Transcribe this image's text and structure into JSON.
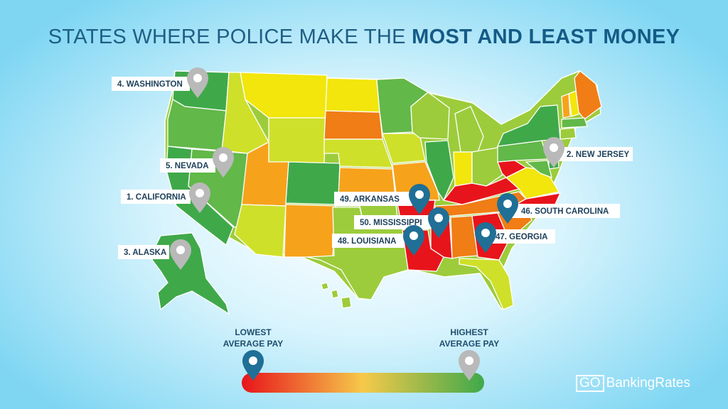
{
  "title": {
    "prefix": "STATES WHERE POLICE MAKE THE ",
    "emphasis": "MOST AND LEAST MONEY"
  },
  "markers": [
    {
      "label": "4. WASHINGTON",
      "kind": "high"
    },
    {
      "label": "5. NEVADA",
      "kind": "high"
    },
    {
      "label": "1. CALIFORNIA",
      "kind": "high"
    },
    {
      "label": "3. ALASKA",
      "kind": "high"
    },
    {
      "label": "2. NEW JERSEY",
      "kind": "high"
    },
    {
      "label": "49. ARKANSAS",
      "kind": "low"
    },
    {
      "label": "50. MISSISSIPPI",
      "kind": "low"
    },
    {
      "label": "48. LOUISIANA",
      "kind": "low"
    },
    {
      "label": "46. SOUTH CAROLINA",
      "kind": "low"
    },
    {
      "label": "47. GEORGIA",
      "kind": "low"
    }
  ],
  "legend": {
    "low_line1": "LOWEST",
    "low_line2": "AVERAGE PAY",
    "high_line1": "HIGHEST",
    "high_line2": "AVERAGE PAY",
    "low_color": "#e8141b",
    "mid_color": "#f6c94a",
    "high_color": "#3fa94a"
  },
  "brand": {
    "go": "GO",
    "name": "BankingRates"
  },
  "colors": {
    "dark_green": "#3fa94a",
    "green": "#62b849",
    "light_green": "#9ccc3b",
    "yellow_green": "#cfe02a",
    "yellow": "#f2e60c",
    "orange": "#f7a21b",
    "dark_orange": "#f07d15",
    "red": "#e8141b",
    "pin_blue": "#1f6f96",
    "pin_gray": "#b9b9b9"
  }
}
